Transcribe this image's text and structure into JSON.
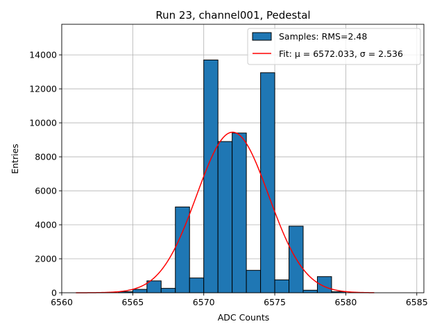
{
  "chart_data": {
    "type": "bar",
    "title": "Run 23, channel001, Pedestal",
    "xlabel": "ADC Counts",
    "ylabel": "Entries",
    "xlim": [
      6560,
      6585.5
    ],
    "ylim": [
      0,
      15800
    ],
    "xticks": [
      6560,
      6565,
      6570,
      6575,
      6580,
      6585
    ],
    "yticks": [
      0,
      2000,
      4000,
      6000,
      8000,
      10000,
      12000,
      14000
    ],
    "grid": true,
    "legend_position": "top-right",
    "bin_width": 1,
    "bins": [
      {
        "x": 6564.5,
        "value": 60
      },
      {
        "x": 6565.5,
        "value": 200
      },
      {
        "x": 6566.5,
        "value": 700
      },
      {
        "x": 6567.5,
        "value": 260
      },
      {
        "x": 6568.5,
        "value": 5050
      },
      {
        "x": 6569.5,
        "value": 870
      },
      {
        "x": 6570.5,
        "value": 13700
      },
      {
        "x": 6571.5,
        "value": 8900
      },
      {
        "x": 6572.5,
        "value": 9400
      },
      {
        "x": 6573.5,
        "value": 1320
      },
      {
        "x": 6574.5,
        "value": 12950
      },
      {
        "x": 6575.5,
        "value": 760
      },
      {
        "x": 6576.5,
        "value": 3920
      },
      {
        "x": 6577.5,
        "value": 150
      },
      {
        "x": 6578.5,
        "value": 950
      },
      {
        "x": 6579.5,
        "value": 60
      }
    ],
    "series": [
      {
        "name": "Samples: RMS=2.48",
        "type": "histogram",
        "color": "#1f77b4"
      },
      {
        "name": "Fit: μ = 6572.033, σ = 2.536",
        "type": "gaussian",
        "color": "#ff0000",
        "mu": 6572.033,
        "sigma": 2.536,
        "amplitude": 9450,
        "x_range": [
          6561,
          6582
        ]
      }
    ]
  }
}
